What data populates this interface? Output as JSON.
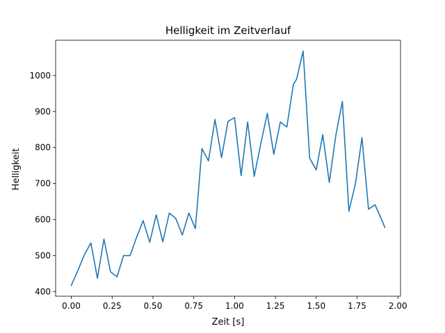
{
  "chart_data": {
    "type": "line",
    "title": "Helligkeit im Zeitverlauf",
    "xlabel": "Zeit [s]",
    "ylabel": "Helligkeit",
    "xlim": [
      -0.096,
      2.016
    ],
    "ylim": [
      387,
      1098
    ],
    "grid": false,
    "legend": "none",
    "xticks": [
      0.0,
      0.25,
      0.5,
      0.75,
      1.0,
      1.25,
      1.5,
      1.75,
      2.0
    ],
    "xtick_labels": [
      "0.00",
      "0.25",
      "0.50",
      "0.75",
      "1.00",
      "1.25",
      "1.50",
      "1.75",
      "2.00"
    ],
    "yticks": [
      400,
      500,
      600,
      700,
      800,
      900,
      1000
    ],
    "ytick_labels": [
      "400",
      "500",
      "600",
      "700",
      "800",
      "900",
      "1000"
    ],
    "series": [
      {
        "color": "#1f77b4",
        "x": [
          0.0,
          0.04,
          0.08,
          0.12,
          0.16,
          0.2,
          0.24,
          0.28,
          0.32,
          0.36,
          0.4,
          0.44,
          0.48,
          0.52,
          0.56,
          0.6,
          0.64,
          0.68,
          0.72,
          0.76,
          0.8,
          0.84,
          0.88,
          0.92,
          0.96,
          1.0,
          1.04,
          1.08,
          1.12,
          1.16,
          1.2,
          1.24,
          1.28,
          1.32,
          1.36,
          1.38,
          1.42,
          1.46,
          1.5,
          1.54,
          1.58,
          1.62,
          1.66,
          1.7,
          1.74,
          1.78,
          1.82,
          1.86,
          1.9,
          1.92
        ],
        "y": [
          417,
          458,
          502,
          535,
          437,
          546,
          455,
          441,
          500,
          500,
          551,
          597,
          537,
          613,
          538,
          618,
          603,
          557,
          618,
          575,
          797,
          763,
          878,
          772,
          873,
          883,
          722,
          871,
          720,
          810,
          895,
          781,
          871,
          857,
          975,
          990,
          1068,
          770,
          738,
          836,
          703,
          834,
          928,
          623,
          700,
          827,
          629,
          641,
          600,
          578
        ]
      }
    ]
  }
}
